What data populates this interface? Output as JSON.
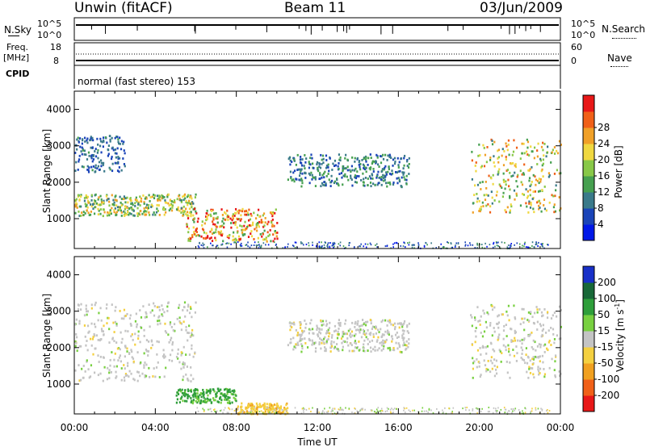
{
  "header": {
    "radar": "Unwin (fitACF)",
    "beam": "Beam 11",
    "date": "03/Jun/2009"
  },
  "strips": {
    "nsky_label": "N.Sky",
    "nsky_ticks": [
      "10^5",
      "10^0"
    ],
    "nsearch_label": "N.Search",
    "nsearch_ticks": [
      "10^5",
      "10^0"
    ],
    "freq_label_1": "Freq.",
    "freq_label_2": "[MHz]",
    "freq_ticks": [
      "18",
      "8"
    ],
    "nave_label": "Nave",
    "nave_ticks": [
      "60",
      "0"
    ],
    "cpid_label": "CPID",
    "cpid_text": "normal (fast stereo) 153"
  },
  "chart_data": [
    {
      "type": "heatmap",
      "quantity": "Power",
      "ylabel": "Slant Range [km]",
      "yticks": [
        1000,
        2000,
        3000,
        4000
      ],
      "ylim": [
        180,
        4500
      ],
      "xlim": [
        "00:00",
        "24:00"
      ],
      "colorbar": {
        "label": "Power [dB]",
        "ticks": [
          "4",
          "8",
          "12",
          "16",
          "20",
          "24",
          "28"
        ],
        "range": [
          0,
          30
        ],
        "colors": [
          "#0018e8",
          "#1a44b8",
          "#3a7a8a",
          "#46a050",
          "#88c848",
          "#f0d840",
          "#f0a028",
          "#f06018",
          "#e81818"
        ]
      },
      "echo_regions_approx": [
        {
          "t_start_h": 0.0,
          "t_end_h": 6.0,
          "range_km": [
            1100,
            1700
          ],
          "peak_power_db": 22
        },
        {
          "t_start_h": 0.0,
          "t_end_h": 2.5,
          "range_km": [
            2300,
            3300
          ],
          "peak_power_db": 10
        },
        {
          "t_start_h": 5.5,
          "t_end_h": 10.0,
          "range_km": [
            400,
            1300
          ],
          "peak_power_db": 30
        },
        {
          "t_start_h": 10.5,
          "t_end_h": 16.5,
          "range_km": [
            1900,
            2800
          ],
          "peak_power_db": 12
        },
        {
          "t_start_h": 19.5,
          "t_end_h": 24.0,
          "range_km": [
            1200,
            3200
          ],
          "peak_power_db": 24
        }
      ]
    },
    {
      "type": "heatmap",
      "quantity": "Velocity",
      "ylabel": "Slant Range [km]",
      "yticks": [
        1000,
        2000,
        3000,
        4000
      ],
      "ylim": [
        180,
        4500
      ],
      "xlim": [
        "00:00",
        "24:00"
      ],
      "xlabel": "Time UT",
      "xticks": [
        "00:00",
        "04:00",
        "08:00",
        "12:00",
        "16:00",
        "20:00",
        "00:00"
      ],
      "colorbar": {
        "label_main": "Velocity ",
        "label_units": "[m s",
        "label_sup": "-1",
        "label_close": "]",
        "ticks": [
          "200",
          "100",
          "50",
          "15",
          "-15",
          "-50",
          "-100",
          "-200"
        ],
        "colors": [
          "#1830c8",
          "#186838",
          "#2e9e3a",
          "#78d040",
          "#c4c4c4",
          "#f4d040",
          "#f0a020",
          "#f06018",
          "#e81818"
        ]
      },
      "echo_regions_approx": [
        {
          "t_start_h": 0.0,
          "t_end_h": 6.0,
          "range_km": [
            1100,
            3300
          ],
          "velocity_ms": 0
        },
        {
          "t_start_h": 5.0,
          "t_end_h": 8.0,
          "range_km": [
            500,
            900
          ],
          "velocity_ms": 40
        },
        {
          "t_start_h": 8.0,
          "t_end_h": 10.5,
          "range_km": [
            200,
            500
          ],
          "velocity_ms": -40
        },
        {
          "t_start_h": 10.5,
          "t_end_h": 16.5,
          "range_km": [
            1900,
            2800
          ],
          "velocity_ms": 0
        },
        {
          "t_start_h": 19.5,
          "t_end_h": 24.0,
          "range_km": [
            1200,
            3200
          ],
          "velocity_ms": 0
        }
      ]
    }
  ]
}
